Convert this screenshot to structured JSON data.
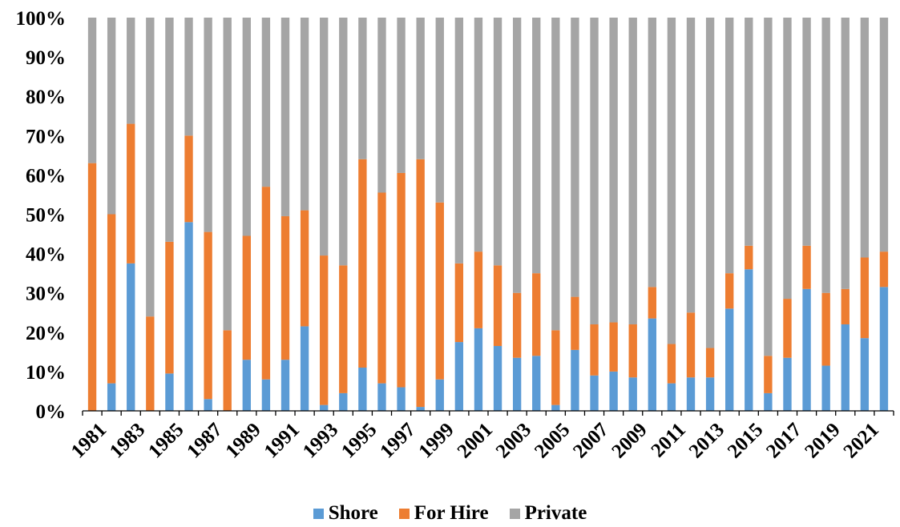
{
  "chart_data": {
    "type": "bar",
    "stacked": true,
    "percent": true,
    "title": "",
    "xlabel": "",
    "ylabel": "",
    "ylim": [
      0,
      100
    ],
    "y_ticks": [
      "0%",
      "10%",
      "20%",
      "30%",
      "40%",
      "50%",
      "60%",
      "70%",
      "80%",
      "90%",
      "100%"
    ],
    "categories": [
      "1981",
      "1982",
      "1983",
      "1984",
      "1985",
      "1986",
      "1987",
      "1988",
      "1989",
      "1990",
      "1991",
      "1992",
      "1993",
      "1994",
      "1995",
      "1996",
      "1997",
      "1998",
      "1999",
      "2000",
      "2001",
      "2002",
      "2003",
      "2004",
      "2005",
      "2006",
      "2007",
      "2008",
      "2009",
      "2010",
      "2011",
      "2012",
      "2013",
      "2014",
      "2015",
      "2016",
      "2017",
      "2018",
      "2019",
      "2020",
      "2021",
      "2022"
    ],
    "x_tick_labels": [
      "1981",
      "1983",
      "1985",
      "1987",
      "1989",
      "1991",
      "1993",
      "1995",
      "1997",
      "1999",
      "2001",
      "2003",
      "2005",
      "2007",
      "2009",
      "2011",
      "2013",
      "2015",
      "2017",
      "2019",
      "2021"
    ],
    "series": [
      {
        "name": "Shore",
        "color": "#5B9BD5",
        "values": [
          0,
          7,
          37.5,
          0,
          9.5,
          48,
          3,
          0,
          13,
          8,
          13,
          21.5,
          1.5,
          4.5,
          11,
          7,
          6,
          1,
          8,
          17.5,
          21,
          16.5,
          13.5,
          14,
          1.5,
          15.5,
          9,
          10,
          8.5,
          23.5,
          7,
          8.5,
          8.5,
          26,
          36,
          4.5,
          13.5,
          31,
          11.5,
          22,
          18.5,
          31.5
        ]
      },
      {
        "name": "For Hire",
        "color": "#ED7D31",
        "values": [
          63,
          43,
          35.5,
          24,
          33.5,
          22,
          42.5,
          20.5,
          31.5,
          49,
          36.5,
          29.5,
          38,
          32.5,
          53,
          48.5,
          54.5,
          63,
          45,
          20,
          19.5,
          20.5,
          16.5,
          21,
          19,
          13.5,
          13,
          12.5,
          13.5,
          8,
          10,
          16.5,
          7.5,
          9,
          6,
          9.5,
          15,
          11,
          18.5,
          9,
          20.5,
          9
        ]
      },
      {
        "name": "Private",
        "color": "#A5A5A5",
        "values": [
          37,
          50,
          27,
          76,
          57,
          30,
          54.5,
          79.5,
          55.5,
          43,
          50.5,
          49,
          60.5,
          63,
          36,
          44.5,
          39.5,
          36,
          47,
          62.5,
          59.5,
          63,
          70,
          65,
          79.5,
          71,
          78,
          77.5,
          78,
          68.5,
          83,
          75,
          84,
          65,
          58,
          86,
          71.5,
          58,
          70,
          69,
          61,
          59.5
        ]
      }
    ],
    "legend_position": "bottom",
    "grid": false
  }
}
